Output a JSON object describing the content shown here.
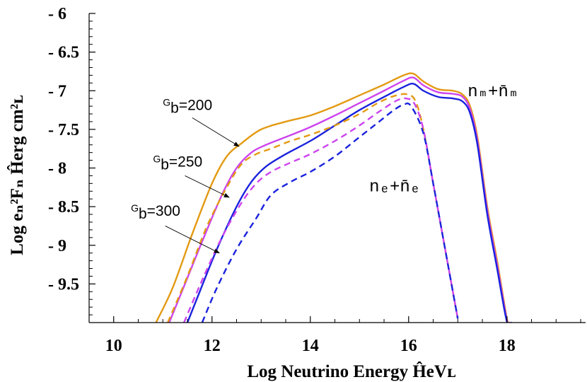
{
  "chart_data": {
    "type": "line",
    "title": "",
    "xlabel": "Log Neutrino Energy ĤeVʟ",
    "ylabel": "Log eₙ²Fₙ Ĥerg cm²ʟ",
    "xlim": [
      9.5,
      19.6
    ],
    "ylim": [
      -10.0,
      -6.0
    ],
    "x_ticks": [
      10,
      12,
      14,
      16,
      18
    ],
    "x_tick_labels": [
      "10",
      "12",
      "14",
      "16",
      "18"
    ],
    "y_ticks": [
      -6,
      -6.5,
      -7,
      -7.5,
      -8,
      -8.5,
      -9,
      -9.5
    ],
    "y_tick_labels": [
      "- 6",
      "- 6.5",
      "- 7",
      "- 7.5",
      "- 8",
      "- 8.5",
      "- 9",
      "- 9.5"
    ],
    "colors": {
      "gb200": "#E39A12",
      "gb250": "#CC44EE",
      "gb300": "#1A22DD"
    },
    "series": [
      {
        "name": "νμ + anti-νμ, Γb=200",
        "flavor": "mu",
        "style": "solid",
        "color_key": "gb200",
        "x": [
          10.86,
          11.2,
          11.6,
          12.0,
          12.3,
          12.6,
          13.0,
          13.5,
          14.0,
          14.5,
          15.0,
          15.5,
          15.9,
          16.1,
          16.3,
          16.6,
          16.9,
          17.1,
          17.25,
          17.4,
          17.6,
          17.8,
          18.0,
          18.05
        ],
        "y": [
          -10.0,
          -9.55,
          -8.85,
          -8.2,
          -7.85,
          -7.68,
          -7.5,
          -7.4,
          -7.32,
          -7.2,
          -7.06,
          -6.92,
          -6.8,
          -6.78,
          -6.88,
          -6.98,
          -7.0,
          -7.05,
          -7.2,
          -7.6,
          -8.5,
          -9.2,
          -9.95,
          -10.0
        ]
      },
      {
        "name": "νμ + anti-νμ, Γb=250",
        "flavor": "mu",
        "style": "solid",
        "color_key": "gb250",
        "x": [
          11.13,
          11.45,
          11.8,
          12.2,
          12.5,
          12.8,
          13.1,
          13.5,
          14.0,
          14.5,
          15.0,
          15.5,
          15.9,
          16.1,
          16.3,
          16.6,
          16.9,
          17.1,
          17.25,
          17.4,
          17.6,
          17.8,
          18.0,
          18.07
        ],
        "y": [
          -10.0,
          -9.5,
          -8.95,
          -8.35,
          -8.0,
          -7.8,
          -7.7,
          -7.6,
          -7.47,
          -7.32,
          -7.16,
          -7.0,
          -6.87,
          -6.83,
          -6.93,
          -7.02,
          -7.04,
          -7.08,
          -7.24,
          -7.65,
          -8.55,
          -9.25,
          -9.97,
          -10.0
        ]
      },
      {
        "name": "νμ + anti-νμ, Γb=300",
        "flavor": "mu",
        "style": "solid",
        "color_key": "gb300",
        "x": [
          11.5,
          11.75,
          12.1,
          12.5,
          12.8,
          13.1,
          13.5,
          14.0,
          14.5,
          15.0,
          15.5,
          15.9,
          16.1,
          16.3,
          16.6,
          16.9,
          17.1,
          17.25,
          17.4,
          17.6,
          17.8,
          18.0,
          18.1
        ],
        "y": [
          -10.0,
          -9.6,
          -9.05,
          -8.5,
          -8.18,
          -7.98,
          -7.82,
          -7.65,
          -7.45,
          -7.25,
          -7.08,
          -6.95,
          -6.91,
          -7.0,
          -7.08,
          -7.1,
          -7.14,
          -7.29,
          -7.7,
          -8.6,
          -9.3,
          -9.99,
          -10.0
        ]
      },
      {
        "name": "νe + anti-νe, Γb=200",
        "flavor": "e",
        "style": "dashed",
        "color_key": "gb200",
        "x": [
          11.1,
          11.5,
          11.9,
          12.3,
          12.6,
          12.9,
          13.2,
          13.6,
          14.0,
          14.5,
          15.0,
          15.4,
          15.75,
          16.0,
          16.15,
          16.3,
          16.5,
          16.7,
          16.9,
          17.0
        ],
        "y": [
          -10.0,
          -9.4,
          -8.75,
          -8.25,
          -7.95,
          -7.82,
          -7.75,
          -7.65,
          -7.57,
          -7.45,
          -7.3,
          -7.15,
          -7.06,
          -7.05,
          -7.15,
          -7.5,
          -8.2,
          -8.9,
          -9.6,
          -9.95
        ]
      },
      {
        "name": "νe + anti-νe, Γb=250",
        "flavor": "e",
        "style": "dashed",
        "color_key": "gb250",
        "x": [
          11.43,
          11.8,
          12.2,
          12.6,
          12.9,
          13.2,
          13.6,
          14.0,
          14.5,
          15.0,
          15.4,
          15.75,
          15.95,
          16.12,
          16.3,
          16.5,
          16.7,
          16.9,
          17.0
        ],
        "y": [
          -10.0,
          -9.45,
          -8.9,
          -8.45,
          -8.2,
          -8.05,
          -7.93,
          -7.82,
          -7.65,
          -7.45,
          -7.27,
          -7.13,
          -7.1,
          -7.17,
          -7.5,
          -8.2,
          -8.9,
          -9.6,
          -9.95
        ]
      },
      {
        "name": "νe + anti-νe, Γb=300",
        "flavor": "e",
        "style": "dashed",
        "color_key": "gb300",
        "x": [
          11.8,
          12.1,
          12.5,
          12.9,
          13.2,
          13.6,
          14.0,
          14.5,
          15.0,
          15.4,
          15.7,
          15.9,
          16.05,
          16.3,
          16.5,
          16.7,
          16.9,
          17.0
        ],
        "y": [
          -10.0,
          -9.55,
          -9.05,
          -8.65,
          -8.35,
          -8.18,
          -8.05,
          -7.85,
          -7.6,
          -7.4,
          -7.25,
          -7.18,
          -7.2,
          -7.55,
          -8.2,
          -8.9,
          -9.6,
          -9.95
        ]
      }
    ],
    "annotations": [
      {
        "id": "gb200",
        "prefix": "G",
        "sub": "b",
        "text": "=200",
        "label_x": 11.0,
        "label_y": -7.25,
        "arrow_from": [
          11.6,
          -7.35
        ],
        "arrow_to": [
          12.55,
          -7.72
        ]
      },
      {
        "id": "gb250",
        "prefix": "G",
        "sub": "b",
        "text": "=250",
        "label_x": 10.8,
        "label_y": -7.98,
        "arrow_from": [
          11.45,
          -8.1
        ],
        "arrow_to": [
          12.35,
          -8.38
        ]
      },
      {
        "id": "gb300",
        "prefix": "G",
        "sub": "b",
        "text": "=300",
        "label_x": 10.35,
        "label_y": -8.62,
        "arrow_from": [
          11.05,
          -8.75
        ],
        "arrow_to": [
          12.15,
          -9.1
        ]
      }
    ],
    "series_labels": [
      {
        "id": "mu",
        "text": "nₘ+n̄ₘ",
        "x": 17.2,
        "y": -7.07
      },
      {
        "id": "e",
        "text": "nₑ+n̄ₑ",
        "x": 15.2,
        "y": -8.3
      }
    ]
  }
}
